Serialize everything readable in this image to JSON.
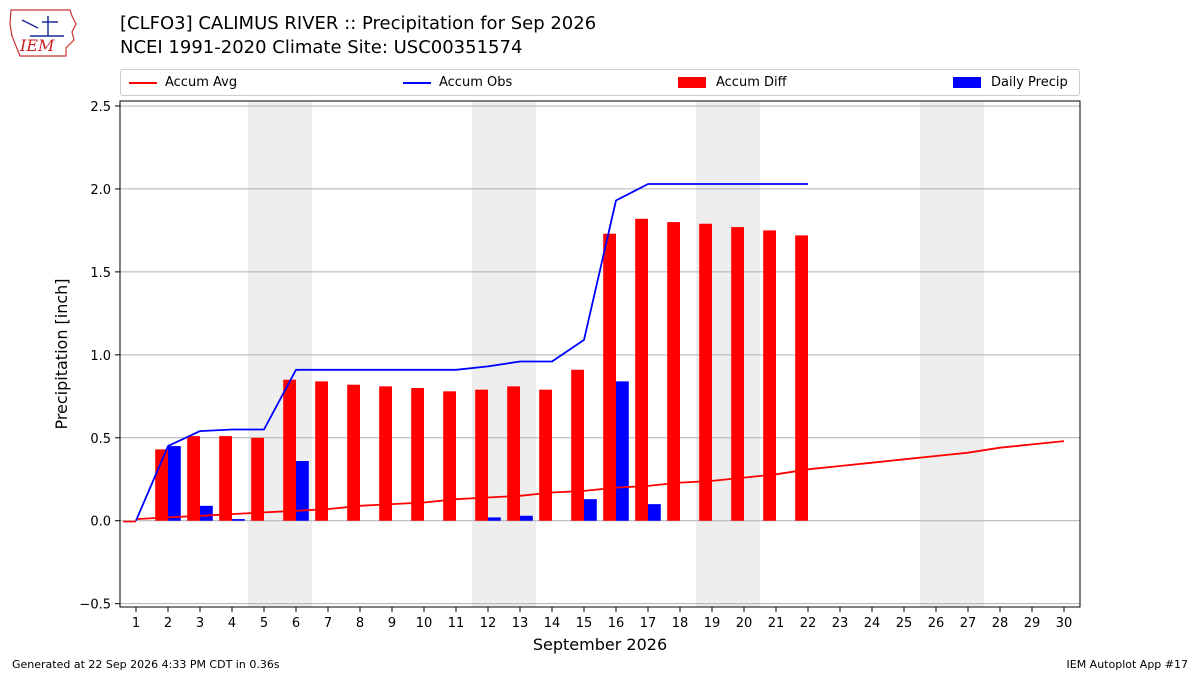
{
  "header": {
    "title": "[CLFO3] CALIMUS RIVER :: Precipitation for Sep 2026",
    "subtitle": "NCEI 1991-2020 Climate Site: USC00351574",
    "logo_text": "IEM"
  },
  "footer": {
    "generated": "Generated at 22 Sep 2026 4:33 PM CDT in 0.36s",
    "app": "IEM Autoplot App #17"
  },
  "colors": {
    "avg": "#ff0000",
    "obs": "#0000ff",
    "diff": "#ff0000",
    "daily": "#0000ff",
    "weekend": "#eeeeee",
    "grid": "#b0b0b0"
  },
  "chart_data": {
    "type": "bar",
    "xlabel": "September 2026",
    "ylabel": "Precipitation [inch]",
    "ylim": [
      -0.52,
      2.53
    ],
    "xlim": [
      0.5,
      30.5
    ],
    "yticks": [
      -0.5,
      0.0,
      0.5,
      1.0,
      1.5,
      2.0,
      2.5
    ],
    "ytick_labels": [
      "−0.5",
      "0.0",
      "0.5",
      "1.0",
      "1.5",
      "2.0",
      "2.5"
    ],
    "days": [
      1,
      2,
      3,
      4,
      5,
      6,
      7,
      8,
      9,
      10,
      11,
      12,
      13,
      14,
      15,
      16,
      17,
      18,
      19,
      20,
      21,
      22,
      23,
      24,
      25,
      26,
      27,
      28,
      29,
      30
    ],
    "weekend_days": [
      5,
      6,
      12,
      13,
      19,
      20,
      26,
      27
    ],
    "grid": "horizontal",
    "legend_position": "top",
    "series": [
      {
        "name": "Accum Avg",
        "kind": "line",
        "x": [
          1,
          2,
          3,
          4,
          5,
          6,
          7,
          8,
          9,
          10,
          11,
          12,
          13,
          14,
          15,
          16,
          17,
          18,
          19,
          20,
          21,
          22,
          23,
          24,
          25,
          26,
          27,
          28,
          29,
          30
        ],
        "values": [
          0.01,
          0.02,
          0.03,
          0.04,
          0.05,
          0.06,
          0.07,
          0.09,
          0.1,
          0.11,
          0.13,
          0.14,
          0.15,
          0.17,
          0.18,
          0.2,
          0.21,
          0.23,
          0.24,
          0.26,
          0.28,
          0.31,
          0.33,
          0.35,
          0.37,
          0.39,
          0.41,
          0.44,
          0.46,
          0.48
        ]
      },
      {
        "name": "Accum Obs",
        "kind": "line",
        "x": [
          1,
          2,
          3,
          4,
          5,
          6,
          7,
          8,
          9,
          10,
          11,
          12,
          13,
          14,
          15,
          16,
          17,
          18,
          19,
          20,
          21,
          22
        ],
        "values": [
          0.0,
          0.45,
          0.54,
          0.55,
          0.55,
          0.91,
          0.91,
          0.91,
          0.91,
          0.91,
          0.91,
          0.93,
          0.96,
          0.96,
          1.09,
          1.93,
          2.03,
          2.03,
          2.03,
          2.03,
          2.03,
          2.03
        ]
      },
      {
        "name": "Accum Diff",
        "kind": "bar",
        "x": [
          1,
          2,
          3,
          4,
          5,
          6,
          7,
          8,
          9,
          10,
          11,
          12,
          13,
          14,
          15,
          16,
          17,
          18,
          19,
          20,
          21,
          22
        ],
        "values": [
          -0.01,
          0.43,
          0.51,
          0.51,
          0.5,
          0.85,
          0.84,
          0.82,
          0.81,
          0.8,
          0.78,
          0.79,
          0.81,
          0.79,
          0.91,
          1.73,
          1.82,
          1.8,
          1.79,
          1.77,
          1.75,
          1.72
        ]
      },
      {
        "name": "Daily Precip",
        "kind": "bar",
        "x": [
          1,
          2,
          3,
          4,
          5,
          6,
          7,
          8,
          9,
          10,
          11,
          12,
          13,
          14,
          15,
          16,
          17,
          18,
          19,
          20,
          21,
          22
        ],
        "values": [
          0.0,
          0.45,
          0.09,
          0.01,
          0.0,
          0.36,
          0.0,
          0.0,
          0.0,
          0.0,
          0.0,
          0.02,
          0.03,
          0.0,
          0.13,
          0.84,
          0.1,
          0.0,
          0.0,
          0.0,
          0.0,
          0.0
        ]
      }
    ]
  }
}
